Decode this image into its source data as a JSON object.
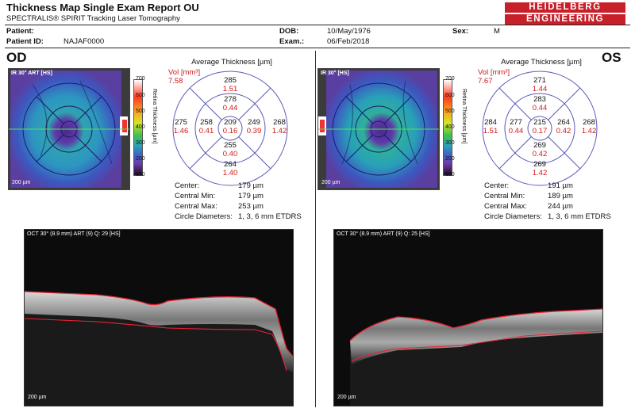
{
  "header": {
    "title": "Thickness Map Single Exam Report OU",
    "subtitle": "SPECTRALIS® SPIRIT Tracking Laser Tomography",
    "logo_line1": "HEIDELBERG",
    "logo_line2": "ENGINEERING"
  },
  "patient": {
    "patient_label": "Patient:",
    "patient_value": "",
    "patient_id_label": "Patient ID:",
    "patient_id_value": "NAJAF0000",
    "dob_label": "DOB:",
    "dob_value": "10/May/1976",
    "exam_label": "Exam.:",
    "exam_value": "06/Feb/2018",
    "sex_label": "Sex:",
    "sex_value": "M"
  },
  "colorbar": {
    "ticks": [
      "700",
      "600",
      "500",
      "400",
      "300",
      "200",
      "100"
    ],
    "title": "Retina Thickness [µm]"
  },
  "od": {
    "eye_label": "OD",
    "fundus_label": "IR 30° ART [HS]",
    "fundus_scale": "200 µm",
    "etdrs_title": "Average Thickness [µm]",
    "vol_label": "Vol [mm³]",
    "vol_value": "7.58",
    "center": {
      "t": "209",
      "v": "0.16"
    },
    "inner": {
      "sup": {
        "t": "278",
        "v": "0.44"
      },
      "inf": {
        "t": "255",
        "v": "0.40"
      },
      "left": {
        "t": "258",
        "v": "0.41"
      },
      "right": {
        "t": "249",
        "v": "0.39"
      }
    },
    "outer": {
      "sup": {
        "t": "285",
        "v": "1.51"
      },
      "inf": {
        "t": "264",
        "v": "1.40"
      },
      "left": {
        "t": "275",
        "v": "1.46"
      },
      "right": {
        "t": "268",
        "v": "1.42"
      }
    },
    "stats": {
      "center_label": "Center:",
      "center_value": "179 µm",
      "cmin_label": "Central Min:",
      "cmin_value": "179 µm",
      "cmax_label": "Central Max:",
      "cmax_value": "253 µm",
      "diam_label": "Circle Diameters:",
      "diam_value": "1, 3, 6 mm ETDRS"
    },
    "oct_label": "OCT 30° (8.9 mm) ART (9) Q: 29 [HS]",
    "oct_scale": "200 µm"
  },
  "os": {
    "eye_label": "OS",
    "fundus_label": "IR 30° [HS]",
    "fundus_scale": "200 µm",
    "etdrs_title": "Average Thickness [µm]",
    "vol_label": "Vol [mm³]",
    "vol_value": "7.67",
    "center": {
      "t": "215",
      "v": "0.17"
    },
    "inner": {
      "sup": {
        "t": "283",
        "v": "0.44"
      },
      "inf": {
        "t": "269",
        "v": "0.42"
      },
      "left": {
        "t": "277",
        "v": "0.44"
      },
      "right": {
        "t": "264",
        "v": "0.42"
      }
    },
    "outer": {
      "sup": {
        "t": "271",
        "v": "1.44"
      },
      "inf": {
        "t": "269",
        "v": "1.42"
      },
      "left": {
        "t": "284",
        "v": "1.51"
      },
      "right": {
        "t": "268",
        "v": "1.42"
      }
    },
    "stats": {
      "center_label": "Center:",
      "center_value": "191 µm",
      "cmin_label": "Central Min:",
      "cmin_value": "189 µm",
      "cmax_label": "Central Max:",
      "cmax_value": "244 µm",
      "diam_label": "Circle Diameters:",
      "diam_value": "1, 3, 6 mm ETDRS"
    },
    "oct_label": "OCT 30° (8.9 mm) ART (9) Q: 25 [HS]",
    "oct_scale": "200 µm"
  },
  "colors": {
    "accent_red": "#c8202a",
    "value_red": "#d01818",
    "circle_blue": "#5b5bb8"
  }
}
